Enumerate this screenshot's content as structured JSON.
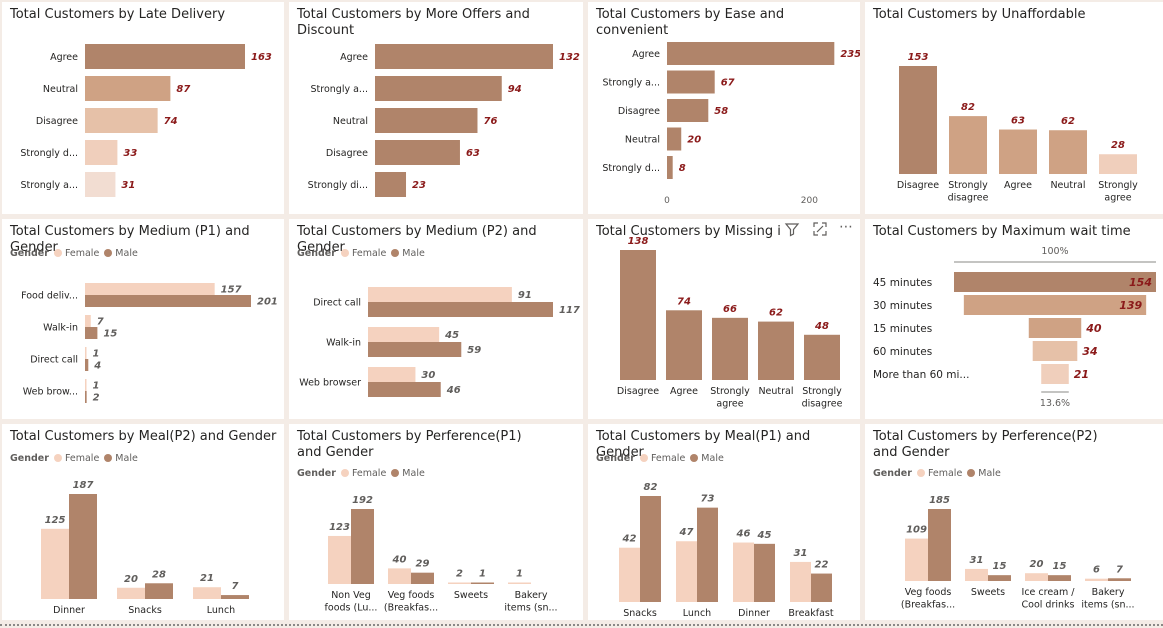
{
  "colors": {
    "c1": "#b0846a",
    "c2": "#cfa284",
    "c3": "#e6c1a8",
    "c4": "#f0cfbc",
    "c5": "#f2ddd2",
    "female": "#f5d2bf",
    "male": "#b0846a",
    "label": "#8b1a1a",
    "text": "#252423",
    "axis": "#605e5c"
  },
  "legend": {
    "title": "Gender",
    "female": "Female",
    "male": "Male"
  },
  "charts": [
    {
      "id": "late",
      "title": "Total Customers by Late Delivery",
      "type": "hbar",
      "categories": [
        "Agree",
        "Neutral",
        "Disagree",
        "Strongly d...",
        "Strongly a..."
      ],
      "values": [
        163,
        87,
        74,
        33,
        31
      ],
      "colors": [
        "c1",
        "c2",
        "c3",
        "c4",
        "c5"
      ]
    },
    {
      "id": "offers",
      "title": "Total Customers by More Offers and Discount",
      "type": "hbar",
      "categories": [
        "Agree",
        "Strongly a...",
        "Neutral",
        "Disagree",
        "Strongly di..."
      ],
      "values": [
        132,
        94,
        76,
        63,
        23
      ],
      "colors": [
        "c1",
        "c1",
        "c1",
        "c1",
        "c1"
      ]
    },
    {
      "id": "ease",
      "title": "Total Customers by Ease and convenient",
      "type": "hbar",
      "categories": [
        "Agree",
        "Strongly a...",
        "Disagree",
        "Neutral",
        "Strongly d..."
      ],
      "values": [
        235,
        67,
        58,
        20,
        8
      ],
      "colors": [
        "c1",
        "c1",
        "c1",
        "c1",
        "c1"
      ],
      "xticks": [
        "0",
        "200"
      ],
      "xlim": [
        0,
        250
      ]
    },
    {
      "id": "unaff",
      "title": "Total Customers by Unaffordable",
      "type": "vbar",
      "categories": [
        [
          "Disagree"
        ],
        [
          "Strongly",
          "disagree"
        ],
        [
          "Agree"
        ],
        [
          "Neutral"
        ],
        [
          "Strongly",
          "agree"
        ]
      ],
      "values": [
        153,
        82,
        63,
        62,
        28
      ],
      "colors": [
        "c1",
        "c2",
        "c2",
        "c2",
        "c4"
      ]
    },
    {
      "id": "med1",
      "title": "Total Customers by Medium (P1) and Gender",
      "type": "hgroup",
      "categories": [
        "Food deliv...",
        "Walk-in",
        "Direct call",
        "Web brow..."
      ],
      "female": [
        157,
        7,
        1,
        1
      ],
      "male": [
        201,
        15,
        4,
        2
      ]
    },
    {
      "id": "med2",
      "title": "Total Customers by Medium (P2) and Gender",
      "type": "hgroup",
      "categories": [
        "Direct call",
        "Walk-in",
        "Web browser"
      ],
      "female": [
        91,
        45,
        30
      ],
      "male": [
        117,
        59,
        46
      ]
    },
    {
      "id": "missing",
      "title": "Total Customers by Missing ite",
      "type": "vbar",
      "categories": [
        [
          "Disagree"
        ],
        [
          "Agree"
        ],
        [
          "Strongly",
          "agree"
        ],
        [
          "Neutral"
        ],
        [
          "Strongly",
          "disagree"
        ]
      ],
      "values": [
        138,
        74,
        66,
        62,
        48
      ],
      "colors": [
        "c1",
        "c1",
        "c1",
        "c1",
        "c1"
      ]
    },
    {
      "id": "wait",
      "title": "Total Customers by Maximum wait time",
      "type": "funnel",
      "categories": [
        "45 minutes",
        "30 minutes",
        "15 minutes",
        "60 minutes",
        "More than 60 mi..."
      ],
      "values": [
        154,
        139,
        40,
        34,
        21
      ],
      "colors": [
        "c1",
        "c2",
        "c2",
        "c3",
        "c4"
      ],
      "top_pct": "100%",
      "bottom_pct": "13.6%"
    },
    {
      "id": "meal2",
      "title": "Total Customers by Meal(P2) and Gender",
      "type": "vgroup",
      "categories": [
        [
          "Dinner"
        ],
        [
          "Snacks"
        ],
        [
          "Lunch"
        ]
      ],
      "female": [
        125,
        20,
        21
      ],
      "male": [
        187,
        28,
        7
      ]
    },
    {
      "id": "pref1",
      "title": "Total Customers by Perference(P1) and Gender",
      "type": "vgroup",
      "categories": [
        [
          "Non Veg",
          "foods (Lu..."
        ],
        [
          "Veg foods",
          "(Breakfas..."
        ],
        [
          "Sweets"
        ],
        [
          "Bakery",
          "items (sn..."
        ]
      ],
      "female": [
        123,
        40,
        2,
        1
      ],
      "male": [
        192,
        29,
        1,
        null
      ]
    },
    {
      "id": "meal1",
      "title": "Total Customers by Meal(P1) and Gender",
      "type": "vgroup",
      "categories": [
        [
          "Snacks"
        ],
        [
          "Lunch"
        ],
        [
          "Dinner"
        ],
        [
          "Breakfast"
        ]
      ],
      "female": [
        42,
        47,
        46,
        31
      ],
      "male": [
        82,
        73,
        45,
        22
      ]
    },
    {
      "id": "pref2",
      "title": "Total Customers by Perference(P2) and Gender",
      "type": "vgroup",
      "categories": [
        [
          "Veg foods",
          "(Breakfas..."
        ],
        [
          "Sweets"
        ],
        [
          "Ice cream /",
          "Cool drinks"
        ],
        [
          "Bakery",
          "items (sn..."
        ]
      ],
      "female": [
        109,
        31,
        20,
        6
      ],
      "male": [
        185,
        15,
        15,
        7
      ]
    }
  ]
}
